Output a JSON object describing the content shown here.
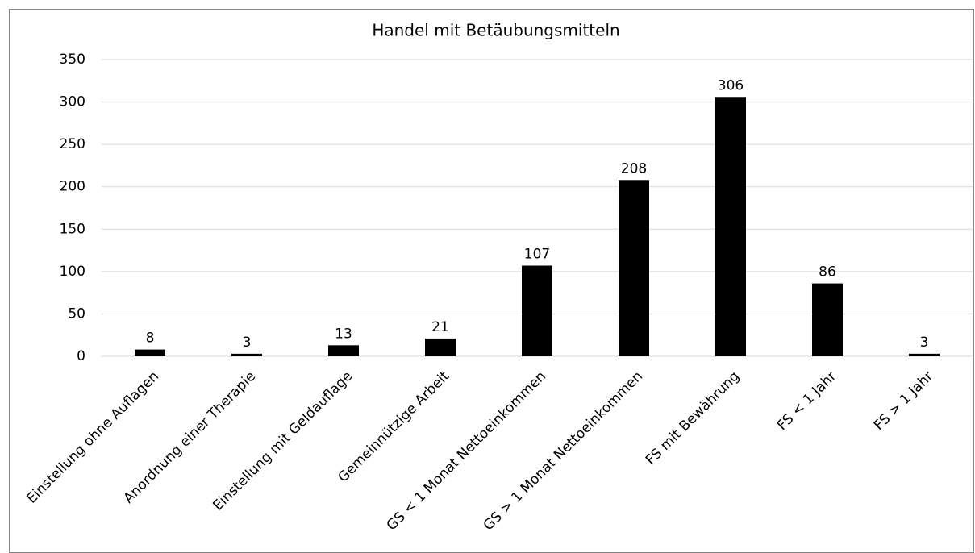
{
  "chart_data": {
    "type": "bar",
    "title": "Handel mit Betäubungsmitteln",
    "categories": [
      "Einstellung ohne Auflagen",
      "Anordnung einer Therapie",
      "Einstellung mit Geldauflage",
      "Gemeinnützige Arbeit",
      "GS < 1 Monat Nettoeinkommen",
      "GS > 1 Monat Nettoeinkommen",
      "FS mit Bewährung",
      "FS < 1 Jahr",
      "FS > 1 Jahr"
    ],
    "values": [
      8,
      3,
      13,
      21,
      107,
      208,
      306,
      86,
      3
    ],
    "color": "#000000",
    "ylim": [
      0,
      350
    ],
    "yticks": [
      0,
      50,
      100,
      150,
      200,
      250,
      300,
      350
    ],
    "grid": true
  }
}
